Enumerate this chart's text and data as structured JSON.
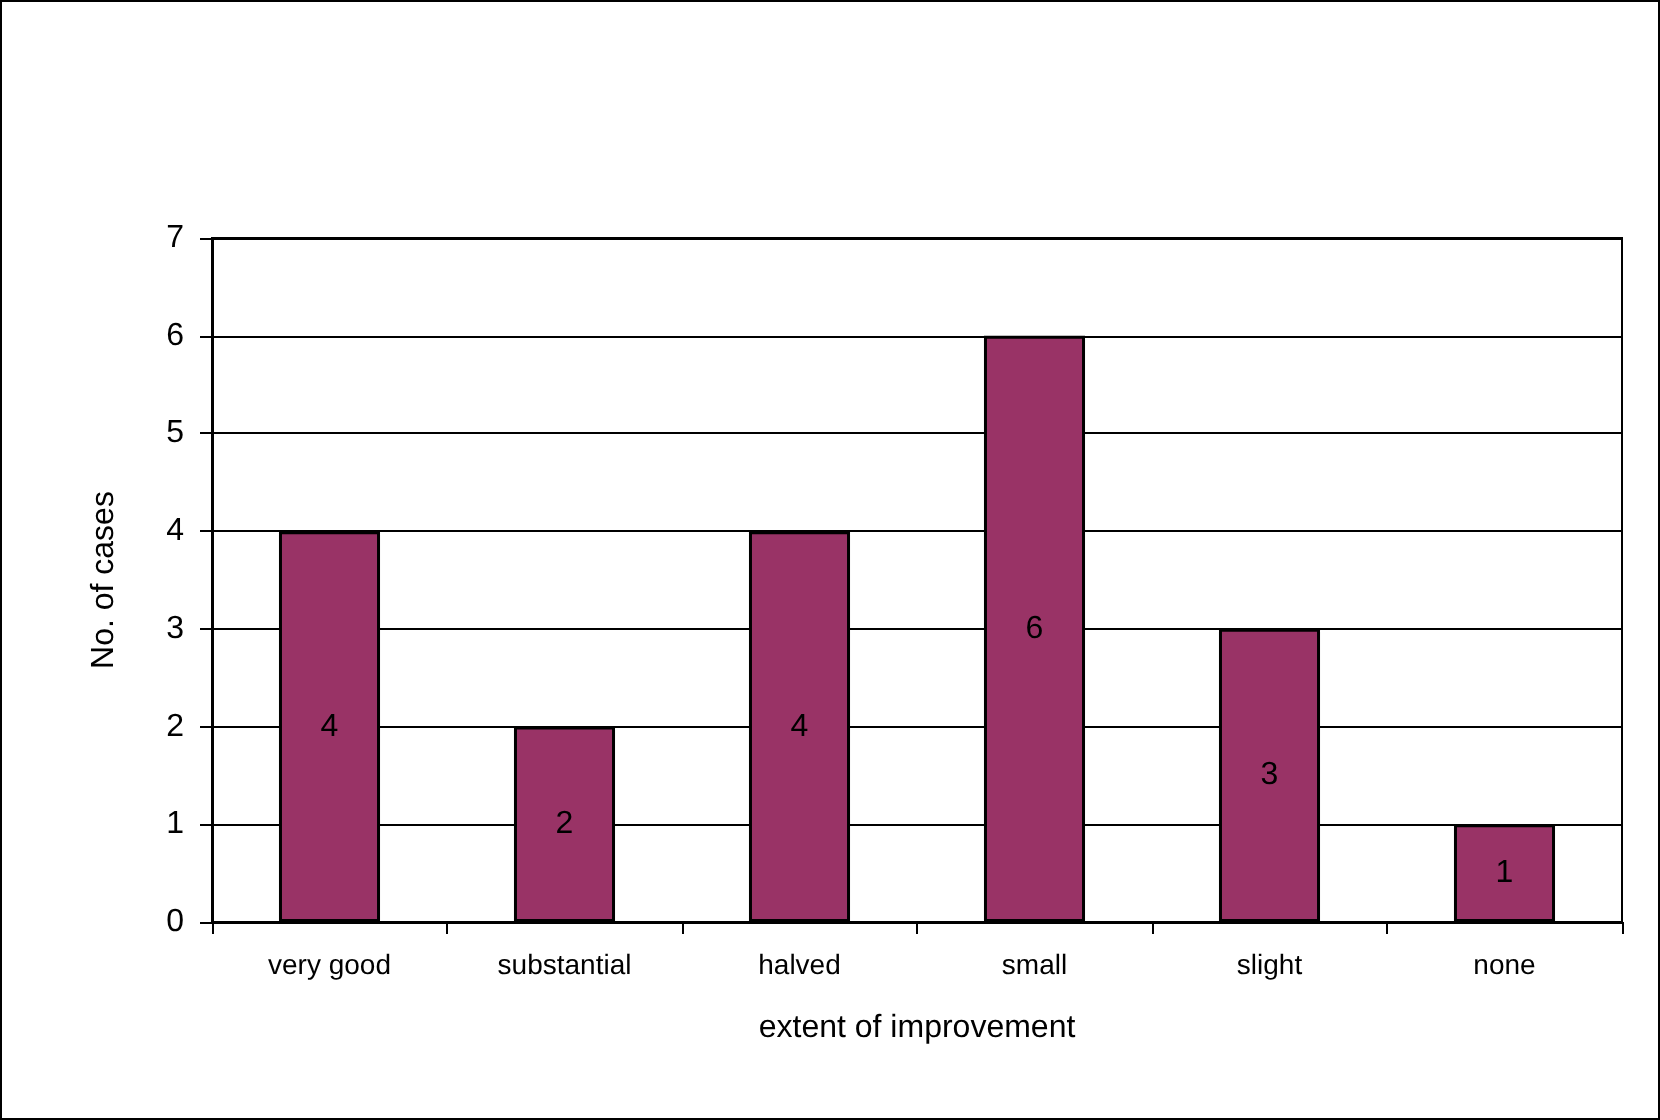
{
  "chart_data": {
    "type": "bar",
    "xlabel": "extent of improvement",
    "ylabel": "No. of cases",
    "categories": [
      "very good",
      "substantial",
      "halved",
      "small",
      "slight",
      "none"
    ],
    "values": [
      4,
      2,
      4,
      6,
      3,
      1
    ],
    "color": "#993366",
    "ylim": [
      0,
      7
    ],
    "yticks": [
      0,
      1,
      2,
      3,
      4,
      5,
      6,
      7
    ],
    "grid": "y",
    "data_labels": true
  }
}
